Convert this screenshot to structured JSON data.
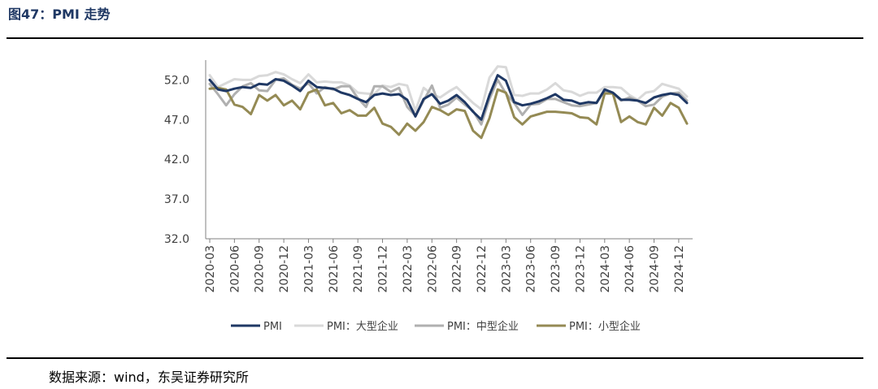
{
  "header": {
    "title": "图47：PMI 走势"
  },
  "footer": {
    "source": "数据来源：wind，东吴证券研究所"
  },
  "chart_data": {
    "type": "line",
    "ylim": [
      32.0,
      54.5
    ],
    "yticks": [
      "52.0",
      "47.0",
      "42.0",
      "37.0",
      "32.0"
    ],
    "ytick_values": [
      52,
      47,
      42,
      37,
      32
    ],
    "x": [
      "2020-03",
      "2020-04",
      "2020-05",
      "2020-06",
      "2020-07",
      "2020-08",
      "2020-09",
      "2020-10",
      "2020-11",
      "2020-12",
      "2021-01",
      "2021-02",
      "2021-03",
      "2021-04",
      "2021-05",
      "2021-06",
      "2021-07",
      "2021-08",
      "2021-09",
      "2021-10",
      "2021-11",
      "2021-12",
      "2022-01",
      "2022-02",
      "2022-03",
      "2022-04",
      "2022-05",
      "2022-06",
      "2022-07",
      "2022-08",
      "2022-09",
      "2022-10",
      "2022-11",
      "2022-12",
      "2023-01",
      "2023-02",
      "2023-03",
      "2023-04",
      "2023-05",
      "2023-06",
      "2023-07",
      "2023-08",
      "2023-09",
      "2023-10",
      "2023-11",
      "2023-12",
      "2024-01",
      "2024-02",
      "2024-03",
      "2024-04",
      "2024-05",
      "2024-06",
      "2024-07",
      "2024-08",
      "2024-09",
      "2024-10",
      "2024-11",
      "2024-12",
      "2025-01"
    ],
    "xtick_labels": [
      "2020-03",
      "2020-06",
      "2020-09",
      "2020-12",
      "2021-03",
      "2021-06",
      "2021-09",
      "2021-12",
      "2022-03",
      "2022-06",
      "2022-09",
      "2022-12",
      "2023-03",
      "2023-06",
      "2023-09",
      "2023-12",
      "2024-03",
      "2024-06",
      "2024-09",
      "2024-12"
    ],
    "series": [
      {
        "name": "PMI",
        "color": "#1f3864",
        "values": [
          52.0,
          50.8,
          50.6,
          50.9,
          51.1,
          51.0,
          51.5,
          51.4,
          52.1,
          51.9,
          51.3,
          50.6,
          51.9,
          51.1,
          51.0,
          50.9,
          50.4,
          50.1,
          49.6,
          49.2,
          50.1,
          50.3,
          50.1,
          50.2,
          49.5,
          47.4,
          49.6,
          50.2,
          49.0,
          49.4,
          50.1,
          49.2,
          48.0,
          47.0,
          50.1,
          52.6,
          51.9,
          49.2,
          48.8,
          49.0,
          49.3,
          49.7,
          50.2,
          49.5,
          49.4,
          49.0,
          49.2,
          49.1,
          50.8,
          50.4,
          49.5,
          49.5,
          49.4,
          49.1,
          49.8,
          50.1,
          50.3,
          50.1,
          49.1
        ]
      },
      {
        "name": "PMI：大型企业",
        "color": "#d9d9d9",
        "values": [
          52.6,
          51.1,
          51.6,
          52.1,
          52.0,
          52.0,
          52.5,
          52.6,
          53.0,
          52.7,
          52.1,
          51.6,
          52.7,
          51.7,
          51.8,
          51.7,
          51.7,
          51.3,
          50.4,
          50.3,
          50.2,
          51.3,
          51.1,
          51.5,
          51.3,
          48.1,
          51.0,
          50.2,
          49.8,
          50.5,
          51.1,
          50.1,
          49.1,
          48.3,
          52.3,
          53.7,
          53.6,
          50.1,
          50.0,
          50.3,
          50.3,
          50.8,
          51.6,
          50.7,
          50.5,
          50.0,
          50.4,
          50.4,
          51.1,
          51.1,
          51.0,
          50.1,
          49.5,
          50.4,
          50.6,
          51.5,
          51.2,
          50.9,
          49.9
        ]
      },
      {
        "name": "PMI：中型企业",
        "color": "#b0b0b0",
        "values": [
          51.5,
          50.2,
          48.8,
          50.2,
          51.2,
          51.6,
          50.7,
          50.6,
          52.0,
          52.2,
          51.4,
          50.9,
          51.6,
          50.3,
          51.1,
          50.8,
          51.2,
          51.2,
          49.7,
          48.6,
          51.2,
          51.2,
          50.5,
          51.0,
          48.6,
          47.5,
          49.4,
          51.3,
          48.5,
          48.9,
          49.8,
          48.9,
          48.1,
          46.4,
          49.6,
          52.0,
          50.3,
          49.1,
          47.6,
          48.9,
          49.0,
          49.6,
          49.6,
          49.2,
          48.8,
          48.7,
          48.9,
          49.1,
          50.6,
          50.3,
          49.4,
          49.8,
          49.4,
          48.7,
          48.9,
          49.9,
          50.3,
          50.4,
          49.4
        ]
      },
      {
        "name": "PMI：小型企业",
        "color": "#948a54",
        "values": [
          50.9,
          51.0,
          50.8,
          48.9,
          48.6,
          47.7,
          50.1,
          49.4,
          50.1,
          48.8,
          49.4,
          48.3,
          50.4,
          50.8,
          48.8,
          49.1,
          47.8,
          48.2,
          47.5,
          47.5,
          48.5,
          46.5,
          46.1,
          45.1,
          46.5,
          45.6,
          46.7,
          48.6,
          48.2,
          47.6,
          48.3,
          48.1,
          45.6,
          44.7,
          47.2,
          50.8,
          50.4,
          47.3,
          46.4,
          47.4,
          47.7,
          48.0,
          48.0,
          47.9,
          47.8,
          47.3,
          47.2,
          46.4,
          50.3,
          50.3,
          46.7,
          47.4,
          46.7,
          46.4,
          48.5,
          47.5,
          49.1,
          48.5,
          46.5
        ]
      }
    ]
  }
}
